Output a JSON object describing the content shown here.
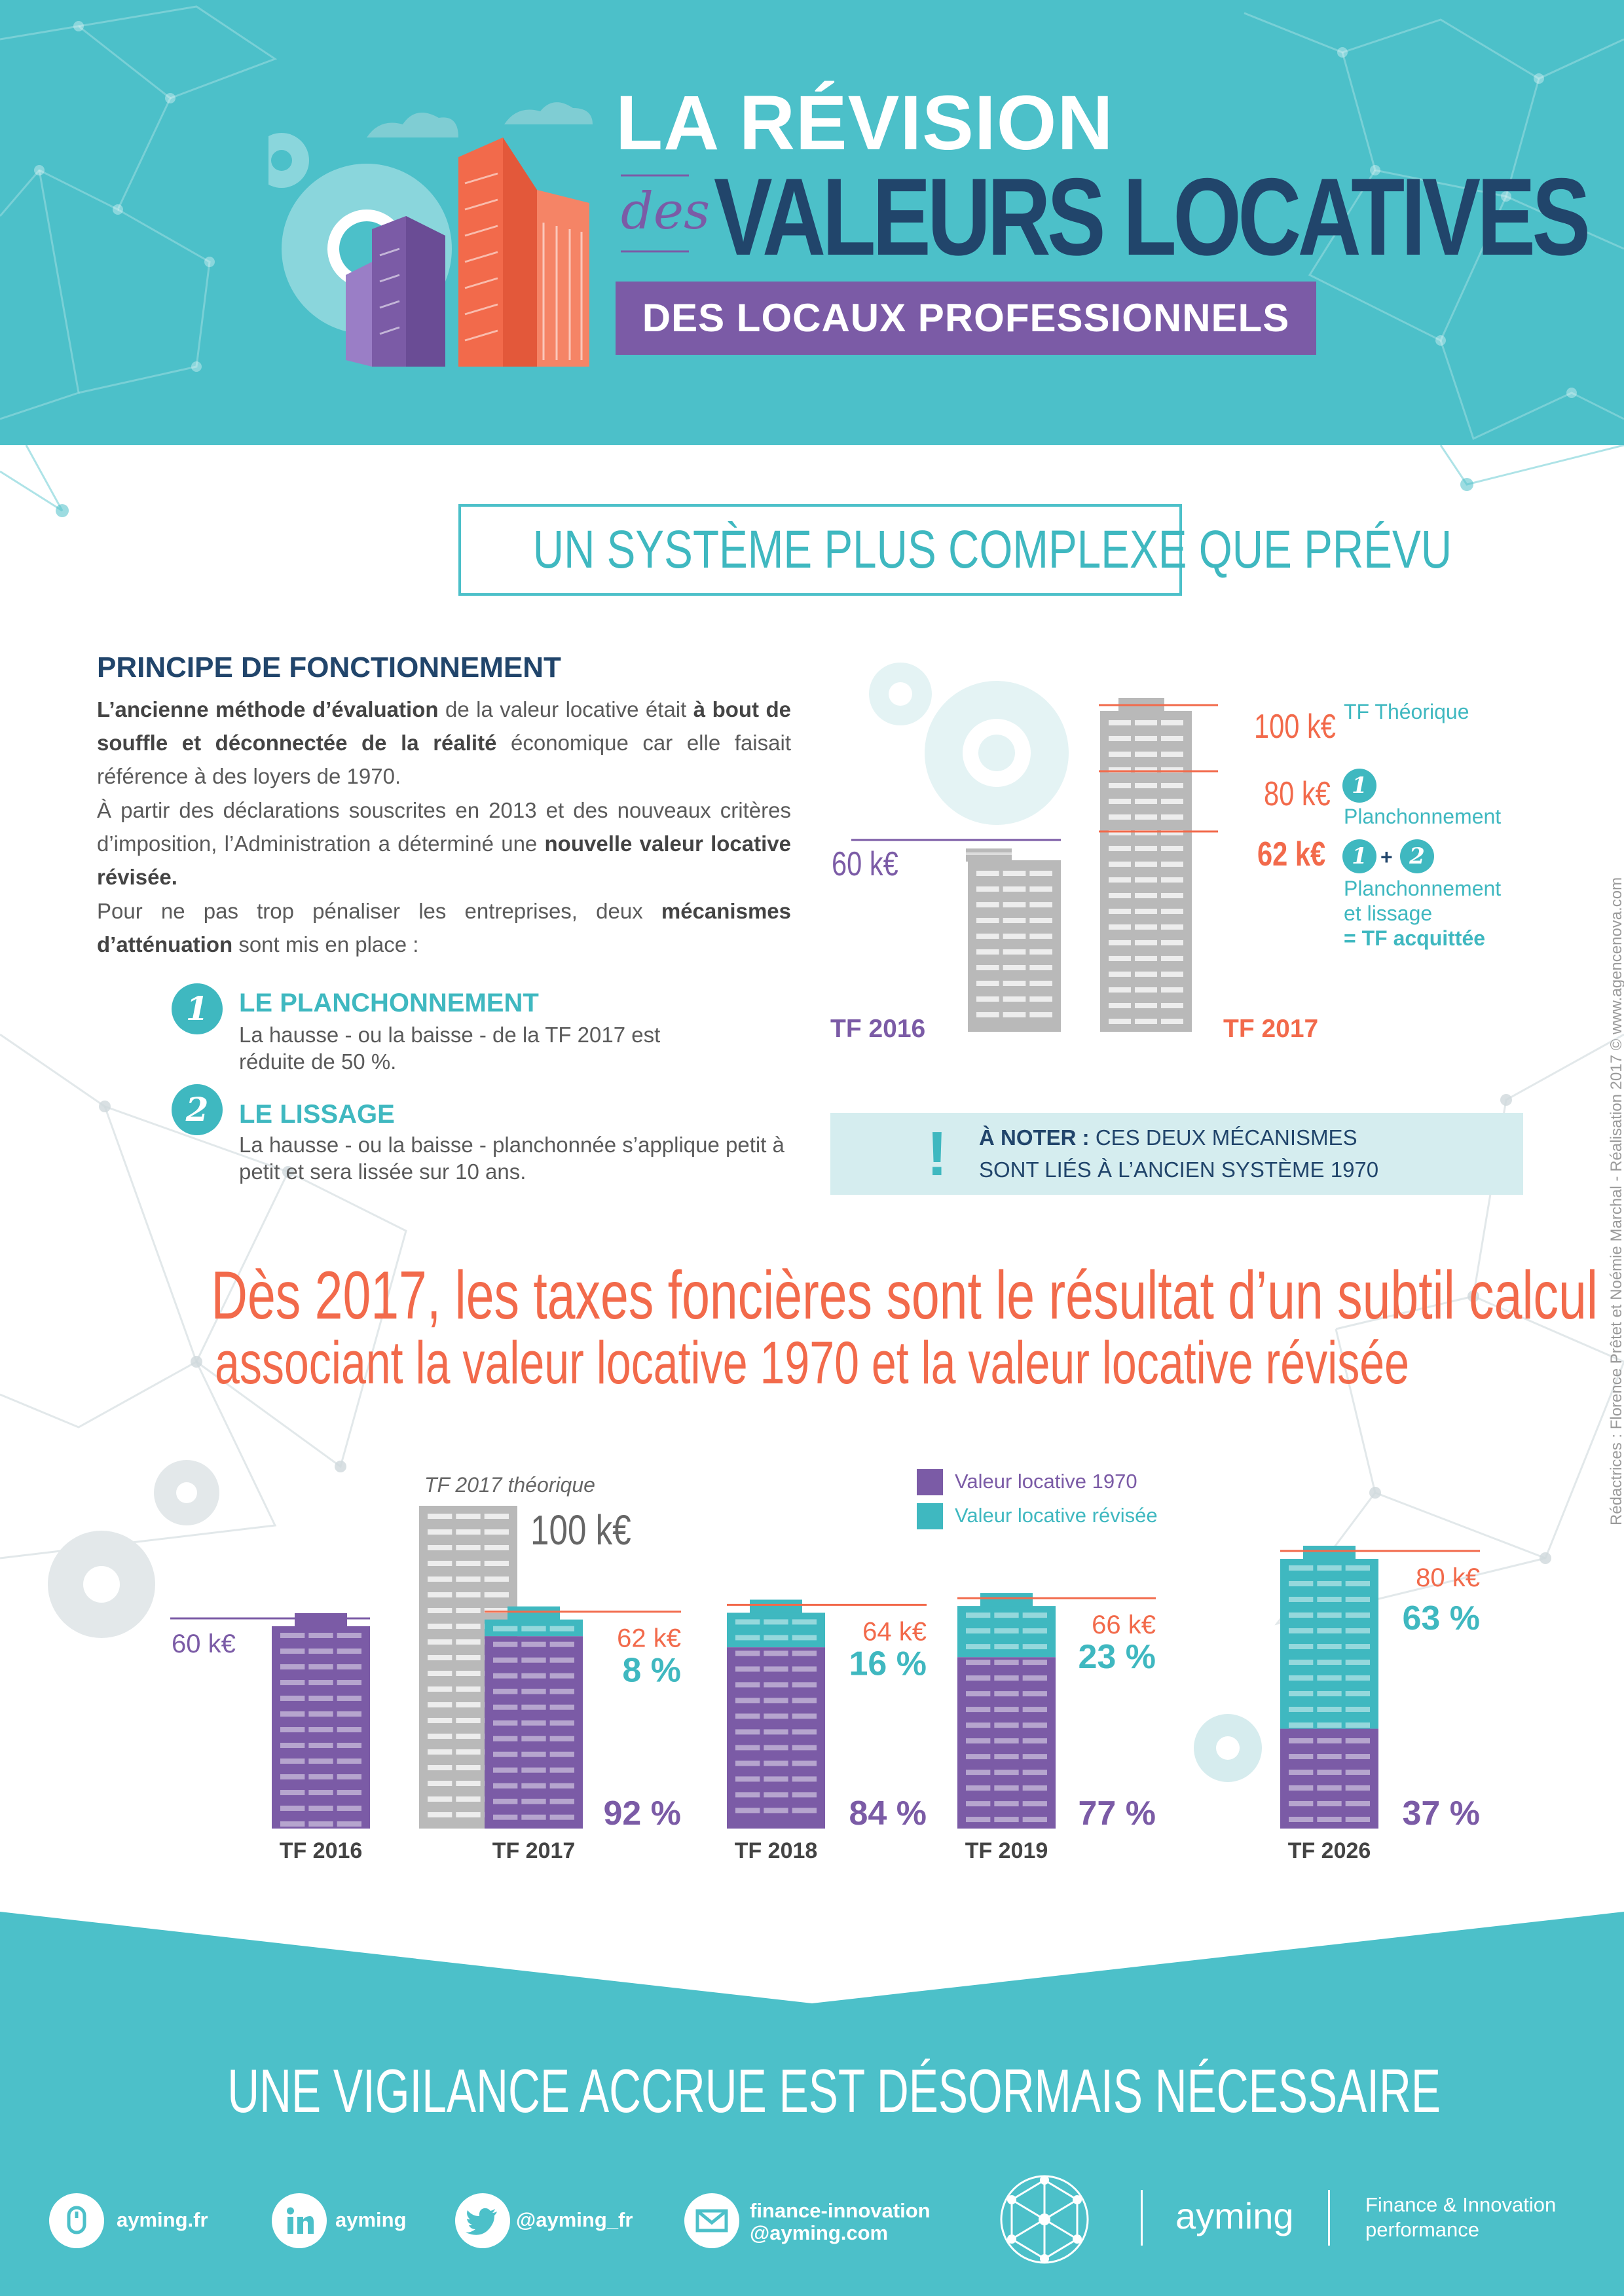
{
  "header": {
    "title_line1": "LA RÉVISION",
    "title_des": "des",
    "title_line2": "VALEURS LOCATIVES",
    "title_line3": "DES LOCAUX PROFESSIONNELS"
  },
  "section1": {
    "heading": "UN SYSTÈME PLUS COMPLEXE QUE PRÉVU",
    "principe_heading": "PRINCIPE DE FONCTIONNEMENT",
    "p1": [
      {
        "b": "L’ancienne méthode d’évaluation"
      },
      {
        "t": " de la valeur locative était "
      },
      {
        "b": "à bout de souffle et déconnectée de la réalité"
      },
      {
        "t": " économique car elle faisait référence à des loyers de 1970."
      }
    ],
    "p2": [
      {
        "t": "À partir des déclarations souscrites en 2013 et des nouveaux critères d’imposition, l’Administration a déterminé une "
      },
      {
        "b": "nouvelle valeur locative révisée."
      }
    ],
    "p3": [
      {
        "t": "Pour ne pas trop pénaliser les entreprises, deux "
      },
      {
        "b": "mécanismes d’atténuation"
      },
      {
        "t": " sont mis en place :"
      }
    ],
    "mech1": {
      "num": "1",
      "title": "LE PLANCHONNEMENT",
      "text": "La hausse - ou la baisse - de la TF 2017 est réduite de 50 %."
    },
    "mech2": {
      "num": "2",
      "title": "LE LISSAGE",
      "text": "La hausse - ou la baisse - planchonnée s’applique petit à petit et sera lissée sur 10 ans."
    },
    "diagram": {
      "tf2016": "TF 2016",
      "tf2017": "TF 2017",
      "v60": "60 k€",
      "v100": "100 k€",
      "v80": "80 k€",
      "v62": "62 k€",
      "tf_theorique": "TF Théorique",
      "c1": "1",
      "c2": "2",
      "plus": "+",
      "planch": "Planchonnement",
      "planch_lissage_1": "Planchonnement",
      "planch_lissage_2": "et lissage",
      "acquittee": "= TF acquittée"
    },
    "note": {
      "excl": "!",
      "bold": "À NOTER :",
      "line1": " CES DEUX MÉCANISMES",
      "line2": "SONT LIÉS À L’ANCIEN SYSTÈME 1970"
    }
  },
  "section2": {
    "line1": "Dès 2017, les taxes foncières sont le résultat d’un subtil calcul",
    "line2": "associant la valeur locative 1970 et la valeur locative révisée",
    "tf2017_theorique": "TF 2017 théorique",
    "v100": "100 k€",
    "legend": [
      {
        "label": "Valeur locative 1970",
        "color": "#7b5ba6"
      },
      {
        "label": "Valeur locative révisée",
        "color": "#3fb8c0"
      }
    ]
  },
  "chart_data": {
    "type": "bar",
    "categories": [
      "TF 2016",
      "TF 2017",
      "TF 2018",
      "TF 2019",
      "TF 2026"
    ],
    "totals_labels": [
      "60 k€",
      "62 k€",
      "64 k€",
      "66 k€",
      "80 k€"
    ],
    "totals": [
      60,
      62,
      64,
      66,
      80
    ],
    "share_1970_labels": [
      "",
      "92 %",
      "84 %",
      "77 %",
      "37 %"
    ],
    "share_revised_labels": [
      "",
      "8 %",
      "16 %",
      "23 %",
      "63 %"
    ],
    "share_1970": [
      100,
      92,
      84,
      77,
      37
    ],
    "share_revised": [
      0,
      8,
      16,
      23,
      63
    ],
    "theoretical_2017": 100,
    "colors": {
      "vl1970": "#7b5ba6",
      "revised": "#3fb8c0",
      "theoretical": "#b9b9b9",
      "total_line": "#f26a4b"
    }
  },
  "footer": {
    "headline": "UNE VIGILANCE ACCRUE EST DÉSORMAIS NÉCESSAIRE",
    "social": [
      {
        "icon": "mouse-icon",
        "label": "ayming.fr"
      },
      {
        "icon": "linkedin-icon",
        "label": "ayming"
      },
      {
        "icon": "twitter-icon",
        "label": "@ayming_fr"
      },
      {
        "icon": "mail-icon",
        "label": "finance-innovation\n@ayming.com"
      }
    ],
    "brand": "ayming",
    "tagline_1": "Finance & Innovation",
    "tagline_2": "performance"
  },
  "credits": "Rédactrices : Florence Prêtet et Noémie Marchal - Réalisation 2017 © www.agencenova.com"
}
